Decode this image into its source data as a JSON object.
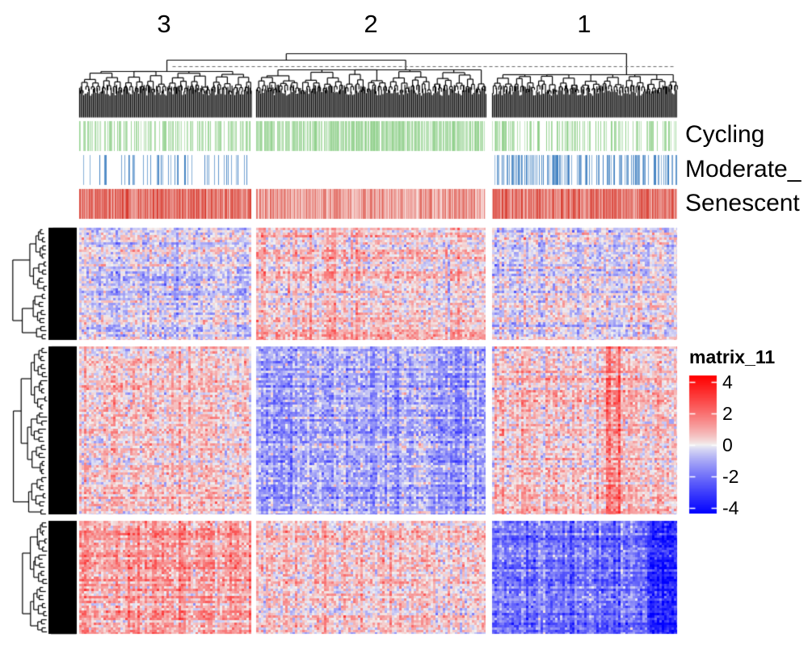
{
  "chart_data": {
    "type": "heatmap",
    "column_titles": [
      "3",
      "2",
      "1"
    ],
    "annotation_labels": [
      "Cycling",
      "Moderate_",
      "Senescent"
    ],
    "annotation_colors": {
      "Cycling": "#8fcf8a",
      "Moderate_": "#3a7cbf",
      "Senescent": "#d7362a"
    },
    "row_slice_count": 3,
    "legend": {
      "title": "matrix_11",
      "ticks": [
        "4",
        "2",
        "0",
        "-2",
        "-4"
      ],
      "range": [
        -4,
        4
      ],
      "colors": {
        "low": "#0000ff",
        "mid": "#f2f2f2",
        "high": "#ff0000"
      }
    },
    "slice_means": [
      [
        -0.3,
        0.5,
        -0.1
      ],
      [
        0.5,
        -0.9,
        0.5
      ],
      [
        1.0,
        0.5,
        -1.7
      ]
    ]
  }
}
